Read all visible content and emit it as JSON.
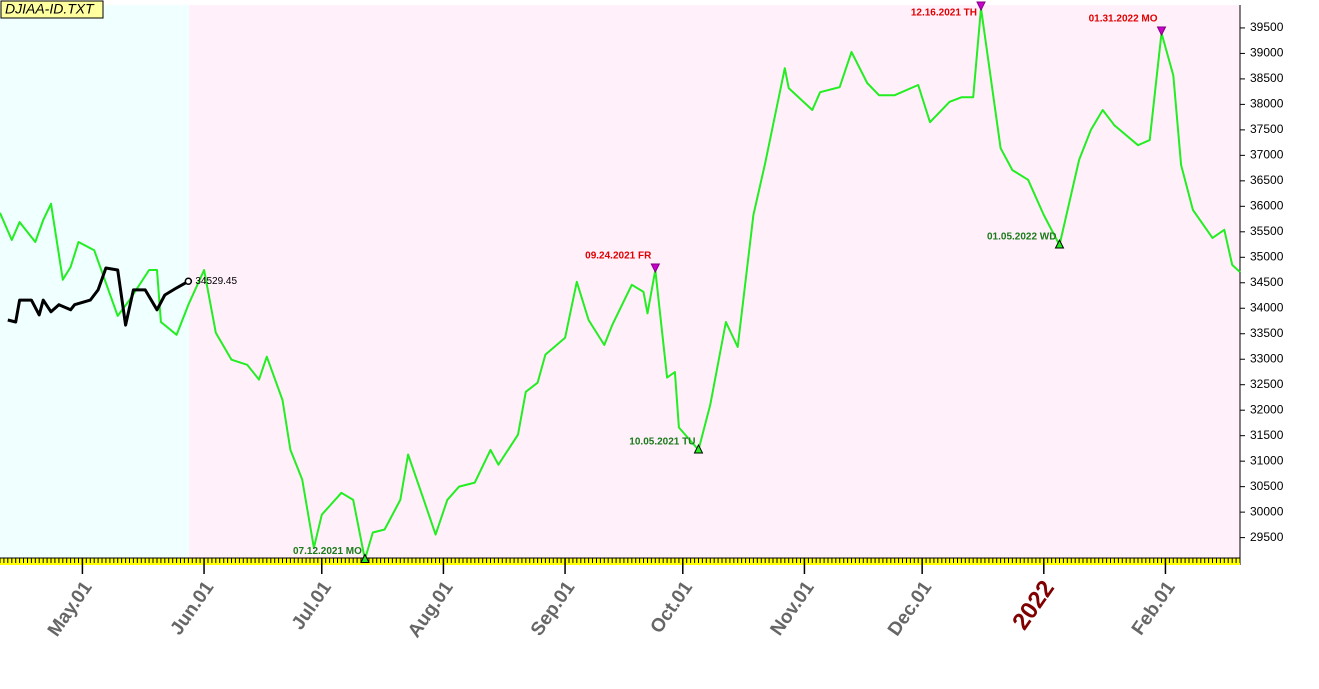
{
  "chart_data": {
    "type": "line",
    "title": "DJIAA-ID.TXT",
    "xlim": [
      "2021-04-10",
      "2022-02-20"
    ],
    "ylim": [
      29100,
      39950
    ],
    "yticks": [
      29500,
      30000,
      30500,
      31000,
      31500,
      32000,
      32500,
      33000,
      33500,
      34000,
      34500,
      35000,
      35500,
      36000,
      36500,
      37000,
      37500,
      38000,
      38500,
      39000,
      39500
    ],
    "xticks": [
      {
        "value": "2021-05-01",
        "label": "May.01"
      },
      {
        "value": "2021-06-01",
        "label": "Jun.01"
      },
      {
        "value": "2021-07-01",
        "label": "Jul.01"
      },
      {
        "value": "2021-08-01",
        "label": "Aug.01"
      },
      {
        "value": "2021-09-01",
        "label": "Sep.01"
      },
      {
        "value": "2021-10-01",
        "label": "Oct.01"
      },
      {
        "value": "2021-11-01",
        "label": "Nov.01"
      },
      {
        "value": "2021-12-01",
        "label": "Dec.01"
      },
      {
        "value": "2022-01-01",
        "label": "2022"
      },
      {
        "value": "2022-02-01",
        "label": "Feb.01"
      }
    ],
    "series": [
      {
        "color": "#22ee22",
        "x": [
          "2021-04-10",
          "2021-04-13",
          "2021-04-15",
          "2021-04-19",
          "2021-04-21",
          "2021-04-23",
          "2021-04-26",
          "2021-04-28",
          "2021-04-30",
          "2021-05-04",
          "2021-05-10",
          "2021-05-13",
          "2021-05-18",
          "2021-05-20",
          "2021-05-21",
          "2021-05-25",
          "2021-05-28",
          "2021-06-01",
          "2021-06-04",
          "2021-06-08",
          "2021-06-12",
          "2021-06-15",
          "2021-06-17",
          "2021-06-21",
          "2021-06-23",
          "2021-06-26",
          "2021-06-29",
          "2021-07-01",
          "2021-07-06",
          "2021-07-09",
          "2021-07-12",
          "2021-07-14",
          "2021-07-17",
          "2021-07-21",
          "2021-07-23",
          "2021-07-27",
          "2021-07-30",
          "2021-08-02",
          "2021-08-05",
          "2021-08-09",
          "2021-08-13",
          "2021-08-15",
          "2021-08-20",
          "2021-08-22",
          "2021-08-25",
          "2021-08-27",
          "2021-09-01",
          "2021-09-04",
          "2021-09-07",
          "2021-09-11",
          "2021-09-13",
          "2021-09-18",
          "2021-09-21",
          "2021-09-22",
          "2021-09-24",
          "2021-09-27",
          "2021-09-29",
          "2021-09-30",
          "2021-10-05",
          "2021-10-08",
          "2021-10-12",
          "2021-10-15",
          "2021-10-19",
          "2021-10-22",
          "2021-10-27",
          "2021-10-28",
          "2021-11-03",
          "2021-11-05",
          "2021-11-10",
          "2021-11-13",
          "2021-11-17",
          "2021-11-20",
          "2021-11-24",
          "2021-11-30",
          "2021-12-03",
          "2021-12-08",
          "2021-12-11",
          "2021-12-14",
          "2021-12-16",
          "2021-12-21",
          "2021-12-24",
          "2021-12-28",
          "2022-01-01",
          "2022-01-05",
          "2022-01-10",
          "2022-01-13",
          "2022-01-16",
          "2022-01-19",
          "2022-01-25",
          "2022-01-28",
          "2022-01-31",
          "2022-02-03",
          "2022-02-05",
          "2022-02-08",
          "2022-02-13",
          "2022-02-16",
          "2022-02-18",
          "2022-02-20"
        ],
        "values": [
          35870,
          35340,
          35690,
          35300,
          35730,
          36050,
          34560,
          34810,
          35300,
          35140,
          33850,
          34160,
          34750,
          34750,
          33730,
          33480,
          34070,
          34750,
          33520,
          32990,
          32890,
          32600,
          33050,
          32200,
          31220,
          30640,
          29300,
          29950,
          30380,
          30240,
          29070,
          29600,
          29660,
          30240,
          31130,
          30240,
          29560,
          30240,
          30500,
          30580,
          31220,
          30930,
          31520,
          32360,
          32540,
          33090,
          33420,
          34520,
          33770,
          33280,
          33670,
          34460,
          34320,
          33900,
          34750,
          32640,
          32750,
          31660,
          31220,
          32110,
          33730,
          33240,
          35830,
          36850,
          38710,
          38320,
          37890,
          38240,
          38340,
          39030,
          38420,
          38180,
          38180,
          38380,
          37650,
          38050,
          38140,
          38140,
          39890,
          37140,
          36710,
          36520,
          35830,
          35240,
          36910,
          37500,
          37890,
          37590,
          37200,
          37300,
          39400,
          38570,
          36810,
          35930,
          35380,
          35540,
          34850,
          34710
        ]
      },
      {
        "color": "#000000",
        "x": [
          "2021-04-12",
          "2021-04-14",
          "2021-04-15",
          "2021-04-18",
          "2021-04-20",
          "2021-04-21",
          "2021-04-23",
          "2021-04-25",
          "2021-04-28",
          "2021-04-29",
          "2021-05-03",
          "2021-05-05",
          "2021-05-07",
          "2021-05-10",
          "2021-05-12",
          "2021-05-14",
          "2021-05-17",
          "2021-05-20",
          "2021-05-22",
          "2021-05-25",
          "2021-05-28"
        ],
        "values": [
          33770,
          33730,
          34160,
          34160,
          33870,
          34160,
          33930,
          34070,
          33970,
          34070,
          34160,
          34360,
          34790,
          34750,
          33670,
          34360,
          34360,
          33970,
          34260,
          34400,
          34529.45
        ]
      }
    ],
    "annotations": [
      {
        "text": "07.12.2021 MO",
        "x": "2021-07-12"
      },
      {
        "text": "09.24.2021 FR",
        "x": "2021-09-24"
      },
      {
        "text": "10.05.2021 TU",
        "x": "2021-10-05"
      },
      {
        "text": "12.16.2021 TH",
        "x": "2021-12-16"
      },
      {
        "text": "01.05.2022 WD",
        "x": "2022-01-05"
      },
      {
        "text": "01.31.2022 MO",
        "x": "2022-01-31"
      }
    ]
  }
}
